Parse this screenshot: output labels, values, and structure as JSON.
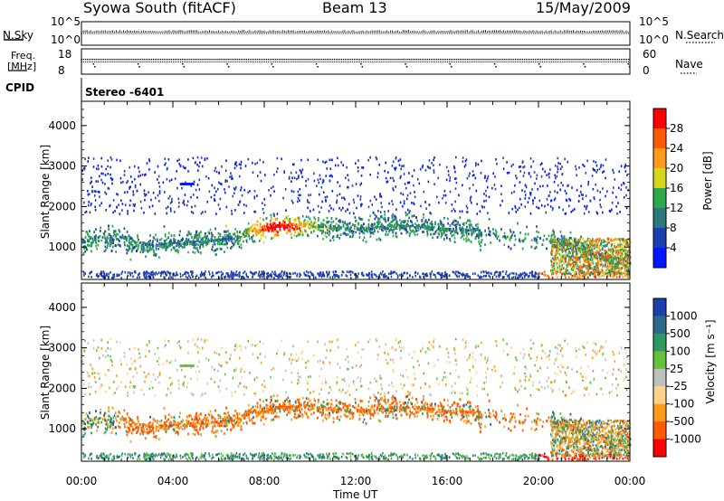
{
  "header": {
    "station": "Syowa South (fitACF)",
    "beam": "Beam 13",
    "date": "15/May/2009"
  },
  "top_panels": {
    "nsky_label": "N.Sky",
    "nsearch_label": "N.Search",
    "nsky_ticks": [
      "10^5",
      "10^0"
    ],
    "nsearch_ticks": [
      "10^5",
      "10^0"
    ],
    "freq_label": "Freq.",
    "freq_unit": "[MHz]",
    "freq_ticks": [
      "18",
      "8"
    ],
    "nave_label": "Nave",
    "nave_ticks": [
      "60",
      "0"
    ],
    "cpid_label": "CPID",
    "cpid_value": "Stereo -6401"
  },
  "chart_data": [
    {
      "type": "heatmap",
      "name": "power",
      "ylabel": "Slant Range [km]",
      "xlabel": "",
      "ylim": [
        200,
        4600
      ],
      "xlim_hours": [
        0,
        24
      ],
      "yticks": [
        "1000",
        "2000",
        "3000",
        "4000"
      ],
      "colorbar_label": "Power [dB]",
      "colorbar_ticks": [
        "28",
        "24",
        "20",
        "16",
        "12",
        "8",
        "4"
      ],
      "colorbar_colors": [
        "#ff0000",
        "#ff5a00",
        "#ff9a1a",
        "#d6d61a",
        "#2ea84a",
        "#2b7a7a",
        "#1e3fb0",
        "#0018ff"
      ]
    },
    {
      "type": "heatmap",
      "name": "velocity",
      "ylabel": "Slant Range [km]",
      "xlabel": "Time UT",
      "ylim": [
        200,
        4600
      ],
      "xlim_hours": [
        0,
        24
      ],
      "yticks": [
        "1000",
        "2000",
        "3000",
        "4000"
      ],
      "xticks": [
        "00:00",
        "04:00",
        "08:00",
        "12:00",
        "16:00",
        "20:00",
        "00:00"
      ],
      "colorbar_label": "Velocity [m s⁻¹]",
      "colorbar_ticks": [
        "1000",
        "500",
        "100",
        "25",
        "-25",
        "-100",
        "-500",
        "-1000"
      ],
      "colorbar_colors": [
        "#1e3fb0",
        "#2b6a8a",
        "#2e9a60",
        "#63c23a",
        "#bfbfbf",
        "#ffd28a",
        "#ff9a1a",
        "#ff5a00",
        "#ff0000"
      ]
    }
  ]
}
